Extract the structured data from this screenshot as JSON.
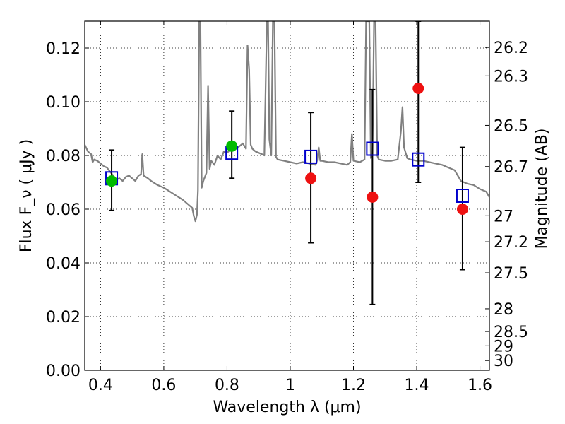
{
  "chart_data": {
    "type": "scatter",
    "xlabel": "Wavelength  λ (μm)",
    "ylabel": "Flux  F_ν  ( μJy )",
    "y2label": "Magnitude (AB)",
    "xlim": [
      0.35,
      1.63
    ],
    "ylim": [
      0.0,
      0.13
    ],
    "grid": true,
    "x_ticks": [
      0.4,
      0.6,
      0.8,
      1.0,
      1.2,
      1.4,
      1.6
    ],
    "x_tick_labels": [
      "0.4",
      "0.6",
      "0.8",
      "1",
      "1.2",
      "1.4",
      "1.6"
    ],
    "y_ticks": [
      0.0,
      0.02,
      0.04,
      0.06,
      0.08,
      0.1,
      0.12
    ],
    "y_tick_labels": [
      "0.00",
      "0.02",
      "0.04",
      "0.06",
      "0.08",
      "0.10",
      "0.12"
    ],
    "y2_tick_labels": [
      "26.2",
      "26.3",
      "26.5",
      "26.7",
      "27",
      "27.2",
      "27.5",
      "28",
      "28.5",
      "29",
      "30"
    ],
    "y2_tick_values": [
      26.2,
      26.3,
      26.5,
      26.7,
      27.0,
      27.2,
      27.5,
      28.0,
      28.5,
      29.0,
      30.0
    ],
    "series": [
      {
        "kind": "line",
        "color": "#808080",
        "points": [
          [
            0.35,
            0.084
          ],
          [
            0.36,
            0.0815
          ],
          [
            0.37,
            0.0805
          ],
          [
            0.375,
            0.0775
          ],
          [
            0.38,
            0.0785
          ],
          [
            0.39,
            0.078
          ],
          [
            0.4,
            0.077
          ],
          [
            0.41,
            0.076
          ],
          [
            0.42,
            0.0755
          ],
          [
            0.43,
            0.074
          ],
          [
            0.44,
            0.0725
          ],
          [
            0.45,
            0.071
          ],
          [
            0.46,
            0.0715
          ],
          [
            0.47,
            0.0705
          ],
          [
            0.48,
            0.072
          ],
          [
            0.49,
            0.0725
          ],
          [
            0.5,
            0.0715
          ],
          [
            0.51,
            0.0705
          ],
          [
            0.52,
            0.0725
          ],
          [
            0.528,
            0.073
          ],
          [
            0.532,
            0.0805
          ],
          [
            0.536,
            0.0725
          ],
          [
            0.55,
            0.0715
          ],
          [
            0.56,
            0.0705
          ],
          [
            0.58,
            0.069
          ],
          [
            0.6,
            0.068
          ],
          [
            0.62,
            0.0665
          ],
          [
            0.64,
            0.065
          ],
          [
            0.66,
            0.0635
          ],
          [
            0.68,
            0.0615
          ],
          [
            0.69,
            0.0605
          ],
          [
            0.695,
            0.0575
          ],
          [
            0.7,
            0.0555
          ],
          [
            0.705,
            0.058
          ],
          [
            0.708,
            0.067
          ],
          [
            0.712,
            0.13
          ],
          [
            0.716,
            0.13
          ],
          [
            0.72,
            0.068
          ],
          [
            0.725,
            0.0705
          ],
          [
            0.73,
            0.072
          ],
          [
            0.735,
            0.0735
          ],
          [
            0.74,
            0.106
          ],
          [
            0.745,
            0.075
          ],
          [
            0.75,
            0.078
          ],
          [
            0.76,
            0.0765
          ],
          [
            0.77,
            0.08
          ],
          [
            0.78,
            0.0785
          ],
          [
            0.79,
            0.0815
          ],
          [
            0.8,
            0.081
          ],
          [
            0.81,
            0.082
          ],
          [
            0.82,
            0.0825
          ],
          [
            0.83,
            0.0825
          ],
          [
            0.84,
            0.0835
          ],
          [
            0.85,
            0.0845
          ],
          [
            0.86,
            0.0825
          ],
          [
            0.865,
            0.121
          ],
          [
            0.87,
            0.112
          ],
          [
            0.875,
            0.084
          ],
          [
            0.88,
            0.0825
          ],
          [
            0.89,
            0.0815
          ],
          [
            0.9,
            0.081
          ],
          [
            0.91,
            0.0805
          ],
          [
            0.918,
            0.08
          ],
          [
            0.922,
            0.105
          ],
          [
            0.926,
            0.13
          ],
          [
            0.93,
            0.13
          ],
          [
            0.934,
            0.086
          ],
          [
            0.94,
            0.08
          ],
          [
            0.945,
            0.13
          ],
          [
            0.95,
            0.13
          ],
          [
            0.955,
            0.0795
          ],
          [
            0.96,
            0.0785
          ],
          [
            0.98,
            0.078
          ],
          [
            1.0,
            0.0775
          ],
          [
            1.02,
            0.077
          ],
          [
            1.04,
            0.0775
          ],
          [
            1.06,
            0.077
          ],
          [
            1.08,
            0.0765
          ],
          [
            1.085,
            0.078
          ],
          [
            1.09,
            0.083
          ],
          [
            1.095,
            0.078
          ],
          [
            1.1,
            0.078
          ],
          [
            1.12,
            0.0775
          ],
          [
            1.14,
            0.0775
          ],
          [
            1.16,
            0.077
          ],
          [
            1.18,
            0.0765
          ],
          [
            1.19,
            0.0775
          ],
          [
            1.195,
            0.088
          ],
          [
            1.2,
            0.078
          ],
          [
            1.22,
            0.0775
          ],
          [
            1.235,
            0.0785
          ],
          [
            1.24,
            0.13
          ],
          [
            1.245,
            0.13
          ],
          [
            1.25,
            0.13
          ],
          [
            1.255,
            0.079
          ],
          [
            1.26,
            0.08
          ],
          [
            1.265,
            0.13
          ],
          [
            1.27,
            0.13
          ],
          [
            1.275,
            0.08
          ],
          [
            1.28,
            0.0785
          ],
          [
            1.3,
            0.078
          ],
          [
            1.32,
            0.078
          ],
          [
            1.34,
            0.0785
          ],
          [
            1.35,
            0.089
          ],
          [
            1.355,
            0.098
          ],
          [
            1.36,
            0.083
          ],
          [
            1.37,
            0.079
          ],
          [
            1.38,
            0.0785
          ],
          [
            1.4,
            0.078
          ],
          [
            1.42,
            0.078
          ],
          [
            1.44,
            0.0775
          ],
          [
            1.46,
            0.077
          ],
          [
            1.48,
            0.0765
          ],
          [
            1.5,
            0.0755
          ],
          [
            1.52,
            0.0745
          ],
          [
            1.54,
            0.0705
          ],
          [
            1.56,
            0.0695
          ],
          [
            1.58,
            0.069
          ],
          [
            1.6,
            0.0675
          ],
          [
            1.62,
            0.0665
          ],
          [
            1.63,
            0.0645
          ]
        ]
      },
      {
        "kind": "errorbar",
        "color": "#000000",
        "points": [
          {
            "x": 0.435,
            "y": 0.0705,
            "ylo": 0.0595,
            "yhi": 0.082
          },
          {
            "x": 0.815,
            "y": 0.0835,
            "ylo": 0.0715,
            "yhi": 0.0965
          },
          {
            "x": 1.065,
            "y": 0.0715,
            "ylo": 0.0475,
            "yhi": 0.096
          },
          {
            "x": 1.26,
            "y": 0.0645,
            "ylo": 0.0245,
            "yhi": 0.1045
          },
          {
            "x": 1.405,
            "y": 0.105,
            "ylo": 0.07,
            "yhi": 0.13
          },
          {
            "x": 1.545,
            "y": 0.06,
            "ylo": 0.0375,
            "yhi": 0.083
          }
        ]
      },
      {
        "kind": "square",
        "color": "#0000cc",
        "points": [
          [
            0.435,
            0.0715
          ],
          [
            0.815,
            0.081
          ],
          [
            1.065,
            0.0795
          ],
          [
            1.26,
            0.0825
          ],
          [
            1.405,
            0.0785
          ],
          [
            1.545,
            0.065
          ]
        ]
      },
      {
        "kind": "circle",
        "color": "#00bb00",
        "points": [
          [
            0.435,
            0.0705
          ],
          [
            0.815,
            0.0835
          ]
        ]
      },
      {
        "kind": "circle",
        "color": "#ee1111",
        "points": [
          [
            1.065,
            0.0715
          ],
          [
            1.26,
            0.0645
          ],
          [
            1.405,
            0.105
          ],
          [
            1.545,
            0.06
          ]
        ]
      }
    ]
  }
}
